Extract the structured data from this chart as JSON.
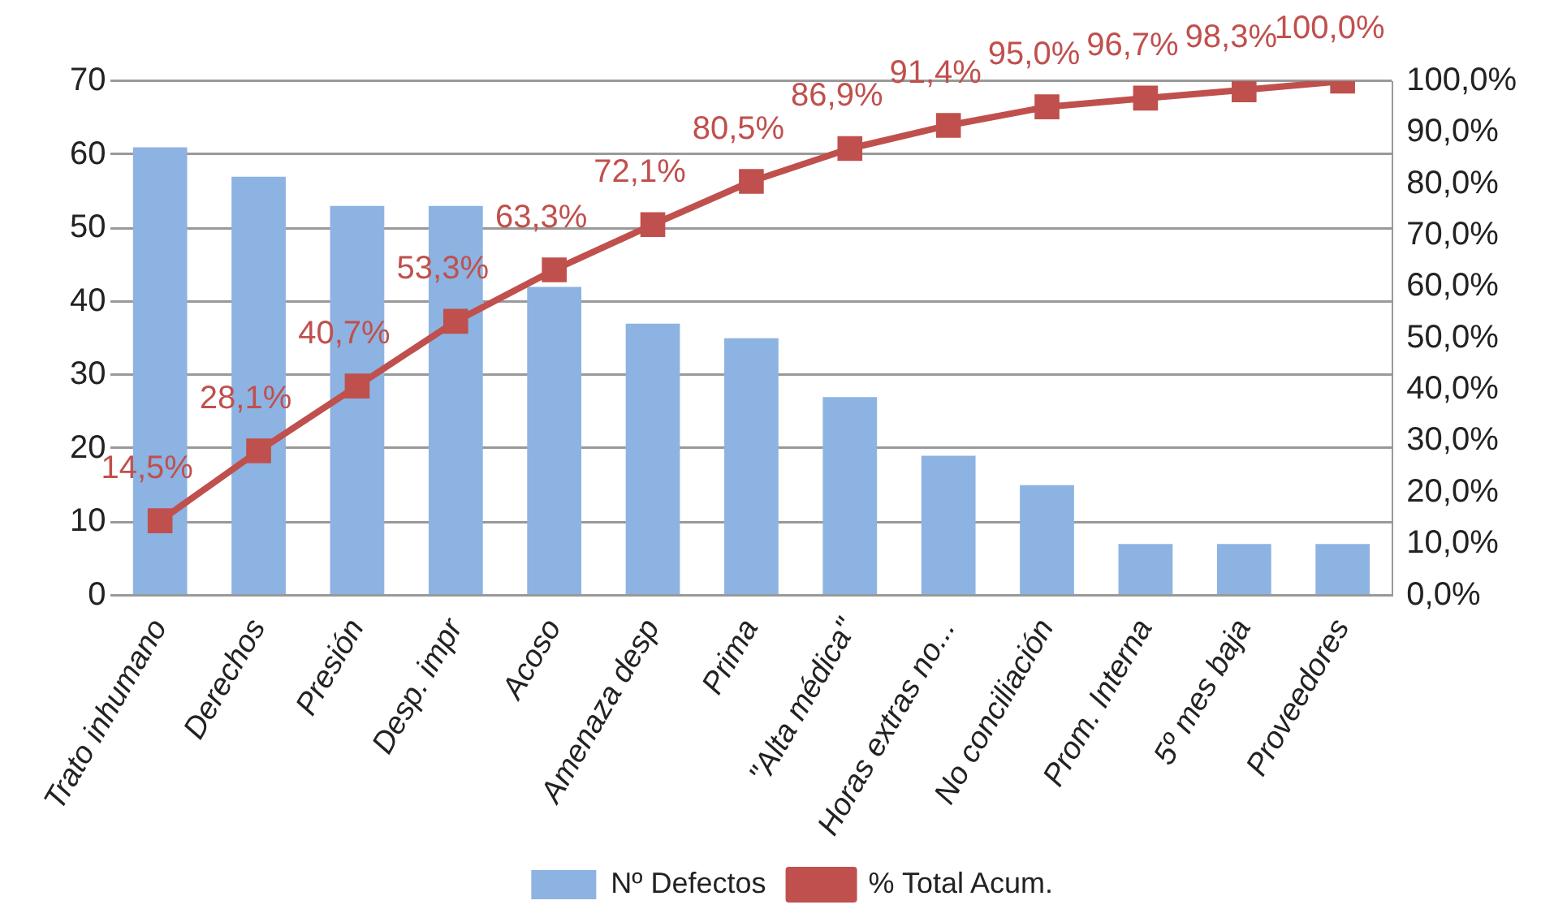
{
  "chart_data": {
    "type": "bar",
    "categories": [
      "Trato inhumano",
      "Derechos",
      "Presión",
      "Desp. impr",
      "Acoso",
      "Amenaza desp",
      "Prima",
      "\"Alta médica\"",
      "Horas extras no...",
      "No conciliación",
      "Prom. Interna",
      "5º mes baja",
      "Proveedores"
    ],
    "series": [
      {
        "name": "Nº Defectos",
        "color": "#8db3e2",
        "values": [
          61,
          57,
          53,
          53,
          42,
          37,
          35,
          27,
          19,
          15,
          7,
          7,
          7
        ]
      },
      {
        "name": "% Total Acum.",
        "type": "line",
        "axis": "y2",
        "color": "#c0504d",
        "marker": "square",
        "values": [
          14.5,
          28.1,
          40.7,
          53.3,
          63.3,
          72.1,
          80.5,
          86.9,
          91.4,
          95.0,
          96.7,
          98.3,
          100.0
        ],
        "value_labels": [
          "14,5%",
          "28,1%",
          "40,7%",
          "53,3%",
          "63,3%",
          "72,1%",
          "80,5%",
          "86,9%",
          "91,4%",
          "95,0%",
          "96,7%",
          "98,3%",
          "100,0%"
        ]
      }
    ],
    "ylim": [
      0,
      70
    ],
    "yticks": [
      0,
      10,
      20,
      30,
      40,
      50,
      60,
      70
    ],
    "y2lim": [
      0,
      100
    ],
    "y2ticks": [
      {
        "value": 0,
        "label": "0,0%"
      },
      {
        "value": 10,
        "label": "10,0%"
      },
      {
        "value": 20,
        "label": "20,0%"
      },
      {
        "value": 30,
        "label": "30,0%"
      },
      {
        "value": 40,
        "label": "40,0%"
      },
      {
        "value": 50,
        "label": "50,0%"
      },
      {
        "value": 60,
        "label": "60,0%"
      },
      {
        "value": 70,
        "label": "70,0%"
      },
      {
        "value": 80,
        "label": "80,0%"
      },
      {
        "value": 90,
        "label": "90,0%"
      },
      {
        "value": 100,
        "label": "100,0%"
      }
    ],
    "grid": "y",
    "legend": "bottom"
  }
}
